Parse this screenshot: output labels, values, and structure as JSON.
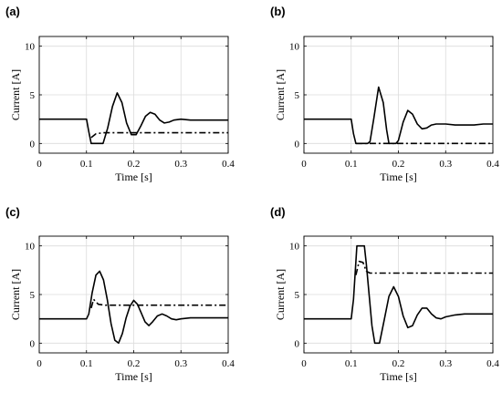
{
  "figure": {
    "panels": [
      "(a)",
      "(b)",
      "(c)",
      "(d)"
    ]
  },
  "chart_data": [
    {
      "panel": "(a)",
      "type": "line",
      "xlabel": "Time [s]",
      "ylabel": "Current [A]",
      "xlim": [
        0,
        0.4
      ],
      "ylim": [
        -1,
        11
      ],
      "xticks": [
        0,
        0.1,
        0.2,
        0.3,
        0.4
      ],
      "yticks": [
        0,
        5,
        10
      ],
      "xtick_labels": [
        "0",
        "0.1",
        "0.2",
        "0.3",
        "0.4"
      ],
      "ytick_labels": [
        "0",
        "5",
        "10"
      ],
      "grid": true,
      "series": [
        {
          "style": "solid",
          "x": [
            0,
            0.1,
            0.105,
            0.11,
            0.12,
            0.135,
            0.145,
            0.155,
            0.165,
            0.175,
            0.185,
            0.195,
            0.205,
            0.215,
            0.225,
            0.235,
            0.245,
            0.255,
            0.265,
            0.275,
            0.285,
            0.3,
            0.32,
            0.34,
            0.36,
            0.38,
            0.4
          ],
          "y": [
            2.5,
            2.5,
            1.2,
            0,
            0,
            0,
            1.6,
            3.8,
            5.2,
            4.2,
            2.1,
            0.9,
            0.9,
            1.8,
            2.8,
            3.2,
            3.0,
            2.4,
            2.1,
            2.2,
            2.4,
            2.5,
            2.4,
            2.4,
            2.4,
            2.4,
            2.4
          ]
        },
        {
          "style": "dashdot",
          "x": [
            0.11,
            0.12,
            0.135,
            0.15,
            0.2,
            0.3,
            0.4
          ],
          "y": [
            0.6,
            1.0,
            1.1,
            1.1,
            1.1,
            1.1,
            1.1
          ]
        }
      ]
    },
    {
      "panel": "(b)",
      "type": "line",
      "xlabel": "Time [s]",
      "ylabel": "Current [A]",
      "xlim": [
        0,
        0.4
      ],
      "ylim": [
        -1,
        11
      ],
      "xticks": [
        0,
        0.1,
        0.2,
        0.3,
        0.4
      ],
      "yticks": [
        0,
        5,
        10
      ],
      "xtick_labels": [
        "0",
        "0.1",
        "0.2",
        "0.3",
        "0.4"
      ],
      "ytick_labels": [
        "0",
        "5",
        "10"
      ],
      "grid": true,
      "series": [
        {
          "style": "solid",
          "x": [
            0,
            0.1,
            0.105,
            0.11,
            0.135,
            0.14,
            0.148,
            0.158,
            0.168,
            0.175,
            0.18,
            0.195,
            0.2,
            0.21,
            0.22,
            0.23,
            0.24,
            0.25,
            0.26,
            0.27,
            0.28,
            0.3,
            0.32,
            0.34,
            0.36,
            0.38,
            0.4
          ],
          "y": [
            2.5,
            2.5,
            1.0,
            0,
            0,
            0.2,
            2.6,
            5.8,
            4.2,
            1.4,
            0,
            0,
            0.3,
            2.2,
            3.4,
            3.0,
            2.0,
            1.5,
            1.6,
            1.9,
            2.0,
            2.0,
            1.9,
            1.9,
            1.9,
            2.0,
            2.0
          ]
        },
        {
          "style": "dashdot",
          "x": [
            0.11,
            0.2,
            0.3,
            0.4
          ],
          "y": [
            0,
            0,
            0,
            0
          ]
        }
      ]
    },
    {
      "panel": "(c)",
      "type": "line",
      "xlabel": "Time [s]",
      "ylabel": "Current [A]",
      "xlim": [
        0,
        0.4
      ],
      "ylim": [
        -1,
        11
      ],
      "xticks": [
        0,
        0.1,
        0.2,
        0.3,
        0.4
      ],
      "yticks": [
        0,
        5,
        10
      ],
      "xtick_labels": [
        "0",
        "0.1",
        "0.2",
        "0.3",
        "0.4"
      ],
      "ytick_labels": [
        "0",
        "5",
        "10"
      ],
      "grid": true,
      "series": [
        {
          "style": "solid",
          "x": [
            0,
            0.1,
            0.105,
            0.112,
            0.12,
            0.128,
            0.136,
            0.144,
            0.152,
            0.16,
            0.168,
            0.176,
            0.184,
            0.192,
            0.2,
            0.208,
            0.216,
            0.224,
            0.232,
            0.24,
            0.25,
            0.26,
            0.27,
            0.28,
            0.29,
            0.3,
            0.32,
            0.34,
            0.36,
            0.38,
            0.4
          ],
          "y": [
            2.5,
            2.5,
            3.0,
            5.2,
            7.0,
            7.4,
            6.5,
            4.5,
            2.0,
            0.3,
            0,
            1.0,
            2.6,
            3.8,
            4.4,
            4.0,
            3.1,
            2.2,
            1.8,
            2.2,
            2.8,
            3.0,
            2.8,
            2.5,
            2.4,
            2.5,
            2.6,
            2.6,
            2.6,
            2.6,
            2.6
          ]
        },
        {
          "style": "dashdot",
          "x": [
            0.11,
            0.115,
            0.125,
            0.14,
            0.2,
            0.3,
            0.4
          ],
          "y": [
            3.6,
            4.5,
            4.0,
            3.9,
            3.9,
            3.9,
            3.9
          ]
        }
      ]
    },
    {
      "panel": "(d)",
      "type": "line",
      "xlabel": "Time [s]",
      "ylabel": "Current [A]",
      "xlim": [
        0,
        0.4
      ],
      "ylim": [
        -1,
        11
      ],
      "xticks": [
        0,
        0.1,
        0.2,
        0.3,
        0.4
      ],
      "yticks": [
        0,
        5,
        10
      ],
      "xtick_labels": [
        "0",
        "0.1",
        "0.2",
        "0.3",
        "0.4"
      ],
      "ytick_labels": [
        "0",
        "5",
        "10"
      ],
      "grid": true,
      "series": [
        {
          "style": "solid",
          "x": [
            0,
            0.1,
            0.105,
            0.112,
            0.118,
            0.128,
            0.132,
            0.138,
            0.144,
            0.15,
            0.155,
            0.16,
            0.17,
            0.18,
            0.19,
            0.2,
            0.21,
            0.22,
            0.23,
            0.24,
            0.25,
            0.26,
            0.27,
            0.28,
            0.29,
            0.3,
            0.32,
            0.34,
            0.36,
            0.38,
            0.4
          ],
          "y": [
            2.5,
            2.5,
            4.5,
            10.0,
            10.0,
            10.0,
            8.2,
            5.0,
            1.8,
            0,
            0,
            0,
            2.4,
            4.8,
            5.8,
            4.8,
            2.8,
            1.6,
            1.8,
            2.9,
            3.6,
            3.6,
            3.0,
            2.6,
            2.5,
            2.7,
            2.9,
            3.0,
            3.0,
            3.0,
            3.0
          ]
        },
        {
          "style": "dashdot",
          "x": [
            0.11,
            0.117,
            0.125,
            0.132,
            0.14,
            0.2,
            0.3,
            0.4
          ],
          "y": [
            7.0,
            8.4,
            8.3,
            7.4,
            7.2,
            7.2,
            7.2,
            7.2
          ]
        }
      ]
    }
  ]
}
